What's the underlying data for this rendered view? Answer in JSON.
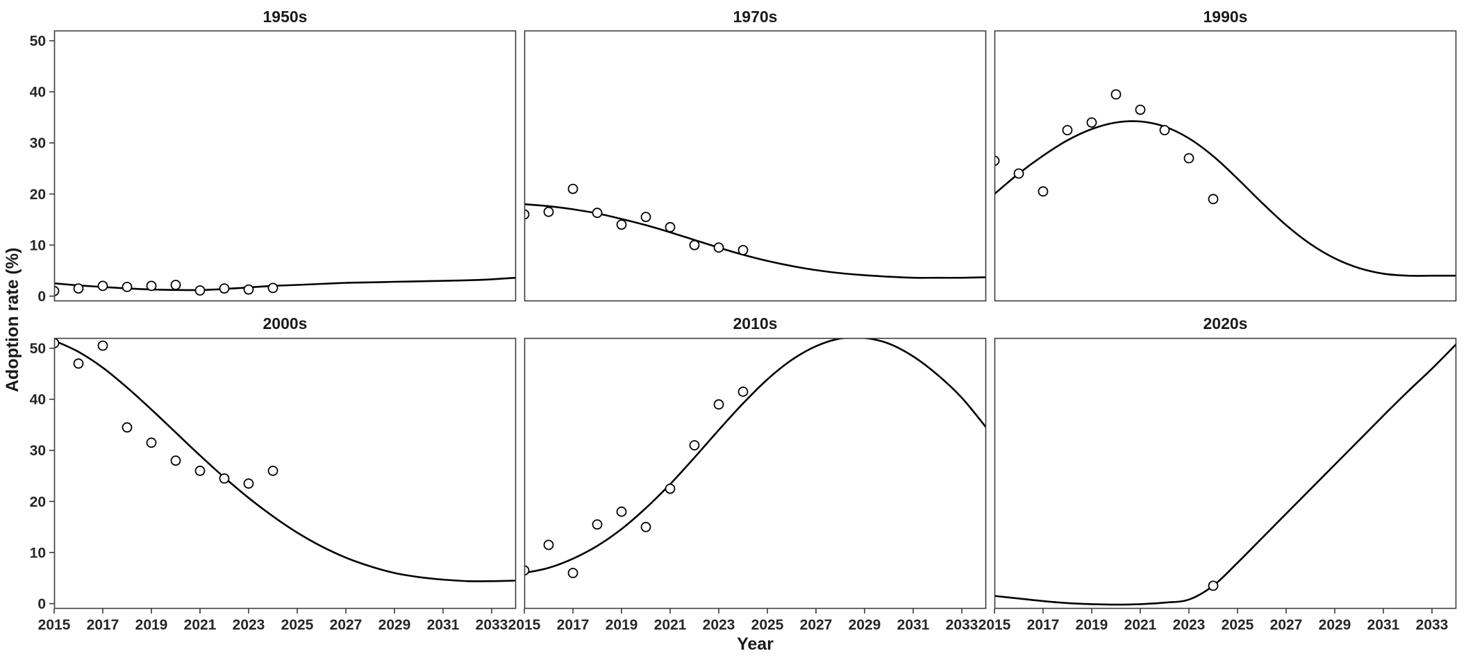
{
  "figure": {
    "background": "#ffffff",
    "border_color": "#3a3a3a",
    "line_color": "#000000",
    "point_stroke": "#000000",
    "point_fill": "#ffffff",
    "text_color": "#1a1a1a"
  },
  "chart_data": {
    "type": "scatter",
    "title": "",
    "xlabel": "Year",
    "ylabel": "Adoption rate (%)",
    "xlim": [
      2015,
      2034
    ],
    "ylim": [
      -1,
      52
    ],
    "x_ticks": [
      2015,
      2017,
      2019,
      2021,
      2023,
      2025,
      2027,
      2029,
      2031,
      2033
    ],
    "y_ticks": [
      0,
      10,
      20,
      30,
      40,
      50
    ],
    "grid": false,
    "legend": "none",
    "facet_layout": {
      "rows": 2,
      "cols": 3
    },
    "facets": [
      {
        "label": "1950s",
        "points": {
          "x": [
            2015,
            2016,
            2017,
            2018,
            2019,
            2020,
            2021,
            2022,
            2023,
            2024
          ],
          "y": [
            1.0,
            1.5,
            2.0,
            1.8,
            2.0,
            2.2,
            1.1,
            1.5,
            1.3,
            1.6
          ]
        },
        "line": {
          "x": [
            2015,
            2016,
            2017,
            2018,
            2019,
            2020,
            2021,
            2022,
            2023,
            2024,
            2025,
            2026,
            2027,
            2028,
            2029,
            2030,
            2031,
            2032,
            2033,
            2034
          ],
          "y": [
            2.5,
            2.1,
            1.8,
            1.5,
            1.3,
            1.2,
            1.2,
            1.4,
            1.7,
            2.0,
            2.2,
            2.4,
            2.6,
            2.7,
            2.8,
            2.9,
            3.0,
            3.1,
            3.3,
            3.6
          ]
        }
      },
      {
        "label": "1970s",
        "points": {
          "x": [
            2015,
            2016,
            2017,
            2018,
            2019,
            2020,
            2021,
            2022,
            2023,
            2024
          ],
          "y": [
            16.0,
            16.5,
            21.0,
            16.3,
            14.0,
            15.5,
            13.5,
            10.0,
            9.5,
            9.0
          ]
        },
        "line": {
          "x": [
            2015,
            2016,
            2017,
            2018,
            2019,
            2020,
            2021,
            2022,
            2023,
            2024,
            2025,
            2026,
            2027,
            2028,
            2029,
            2030,
            2031,
            2032,
            2033,
            2034
          ],
          "y": [
            18.0,
            17.6,
            17.0,
            16.2,
            15.1,
            13.9,
            12.5,
            11.0,
            9.5,
            8.1,
            6.9,
            5.9,
            5.1,
            4.5,
            4.1,
            3.8,
            3.6,
            3.6,
            3.6,
            3.7
          ]
        }
      },
      {
        "label": "1990s",
        "points": {
          "x": [
            2015,
            2016,
            2017,
            2018,
            2019,
            2020,
            2021,
            2022,
            2023,
            2024
          ],
          "y": [
            26.5,
            24.0,
            20.5,
            32.5,
            34.0,
            39.5,
            36.5,
            32.5,
            27.0,
            19.0
          ]
        },
        "line": {
          "x": [
            2015,
            2016,
            2017,
            2018,
            2019,
            2020,
            2021,
            2022,
            2023,
            2024,
            2025,
            2026,
            2027,
            2028,
            2029,
            2030,
            2031,
            2032,
            2033,
            2034
          ],
          "y": [
            20.0,
            24.0,
            27.5,
            30.5,
            32.7,
            34.0,
            34.2,
            33.2,
            30.9,
            27.4,
            23.0,
            18.3,
            13.9,
            10.2,
            7.4,
            5.5,
            4.4,
            4.0,
            4.0,
            4.0
          ]
        }
      },
      {
        "label": "2000s",
        "points": {
          "x": [
            2015,
            2016,
            2017,
            2018,
            2019,
            2020,
            2021,
            2022,
            2023,
            2024
          ],
          "y": [
            51.0,
            47.0,
            50.5,
            34.5,
            31.5,
            28.0,
            26.0,
            24.5,
            23.5,
            26.0
          ]
        },
        "line": {
          "x": [
            2015,
            2016,
            2017,
            2018,
            2019,
            2020,
            2021,
            2022,
            2023,
            2024,
            2025,
            2026,
            2027,
            2028,
            2029,
            2030,
            2031,
            2032,
            2033,
            2034
          ],
          "y": [
            51.5,
            49.3,
            46.2,
            42.3,
            38.0,
            33.5,
            29.0,
            24.7,
            20.7,
            17.1,
            13.9,
            11.2,
            9.0,
            7.3,
            6.0,
            5.2,
            4.7,
            4.4,
            4.4,
            4.5
          ]
        }
      },
      {
        "label": "2010s",
        "points": {
          "x": [
            2015,
            2016,
            2017,
            2018,
            2019,
            2020,
            2021,
            2022,
            2023,
            2024
          ],
          "y": [
            6.5,
            11.5,
            6.0,
            15.5,
            18.0,
            15.0,
            22.5,
            31.0,
            39.0,
            41.5
          ]
        },
        "line": {
          "x": [
            2015,
            2016,
            2017,
            2018,
            2019,
            2020,
            2021,
            2022,
            2023,
            2024,
            2025,
            2026,
            2027,
            2028,
            2029,
            2030,
            2031,
            2032,
            2033,
            2034
          ],
          "y": [
            6.0,
            7.0,
            8.8,
            11.3,
            14.6,
            18.7,
            23.4,
            28.6,
            34.0,
            39.2,
            43.9,
            47.7,
            50.4,
            51.9,
            52.0,
            50.9,
            48.4,
            44.8,
            40.3,
            34.5
          ]
        }
      },
      {
        "label": "2020s",
        "points": {
          "x": [
            2024
          ],
          "y": [
            3.5
          ]
        },
        "line": {
          "x": [
            2015,
            2016,
            2017,
            2018,
            2019,
            2020,
            2021,
            2022,
            2023,
            2024,
            2025,
            2026,
            2027,
            2028,
            2029,
            2030,
            2031,
            2032,
            2033,
            2034
          ],
          "y": [
            1.5,
            1.0,
            0.5,
            0.1,
            -0.1,
            -0.2,
            -0.1,
            0.2,
            0.8,
            3.5,
            8.0,
            12.8,
            17.6,
            22.4,
            27.2,
            32.0,
            36.8,
            41.5,
            46.0,
            50.8
          ]
        }
      }
    ]
  }
}
